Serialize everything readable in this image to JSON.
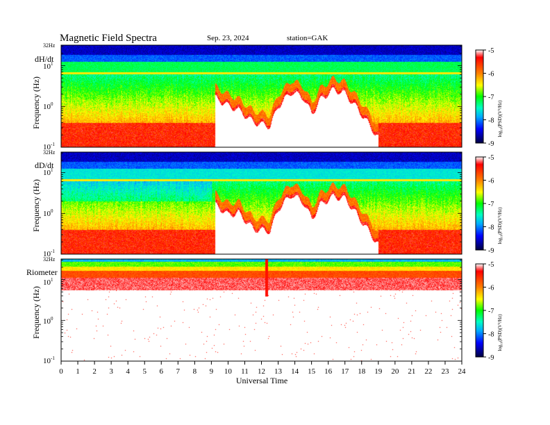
{
  "header": {
    "title": "Magnetic  Field  Spectra",
    "date": "Sep. 23, 2024",
    "station": "station=GAK"
  },
  "chart_data": {
    "type": "heatmap",
    "xlabel": "Universal  Time",
    "x_ticks": [
      "0",
      "1",
      "2",
      "3",
      "4",
      "5",
      "6",
      "7",
      "8",
      "9",
      "10",
      "11",
      "12",
      "13",
      "14",
      "15",
      "16",
      "17",
      "18",
      "19",
      "20",
      "21",
      "22",
      "23",
      "24"
    ],
    "xlim": [
      0,
      24
    ],
    "ylabel": "Frequency  (Hz)",
    "y_scale": "log",
    "ylim_hz": [
      0.1,
      32
    ],
    "y_ticks": [
      {
        "base": "10",
        "exp": "-1"
      },
      {
        "base": "10",
        "exp": "0"
      },
      {
        "base": "10",
        "exp": "1"
      },
      {
        "top_label": "32Hz"
      }
    ],
    "colorbar": {
      "label": "log₁₀(PSD)(V²/Hz)",
      "label_short": "log10(PSD)(V^2/Hz)",
      "range": [
        -9,
        -5
      ],
      "ticks": [
        "-5",
        "-6",
        "-7",
        "-8",
        "-9"
      ],
      "colormap": [
        "#000040",
        "#0000ff",
        "#00aaff",
        "#00ffc0",
        "#00ff00",
        "#ffff00",
        "#ff8000",
        "#ff0000",
        "#ffffff"
      ]
    },
    "panels": [
      {
        "name": "dH/dt",
        "quiet_upper_log10_f": [
          -0.55,
          -0.45,
          -0.4,
          -0.35,
          -0.4,
          -0.35,
          -0.5,
          -0.6,
          -0.5,
          -0.55
        ],
        "activity_hours": [
          9.2,
          19.0
        ],
        "activity_envelope": [
          [
            9.2,
            0.3
          ],
          [
            10.0,
            0.1
          ],
          [
            10.6,
            0.0
          ],
          [
            11.5,
            -0.3
          ],
          [
            12.5,
            -0.4
          ],
          [
            13.0,
            0.1
          ],
          [
            13.8,
            0.45
          ],
          [
            14.5,
            0.3
          ],
          [
            15.0,
            -0.1
          ],
          [
            15.5,
            0.25
          ],
          [
            16.3,
            0.5
          ],
          [
            17.0,
            0.4
          ],
          [
            17.8,
            0.0
          ],
          [
            18.5,
            -0.4
          ],
          [
            19.0,
            -0.7
          ]
        ]
      },
      {
        "name": "dD/dt",
        "quiet_upper_log10_f": [
          -0.5,
          -0.45,
          -0.4,
          -0.35,
          -0.45,
          -0.4,
          -0.55,
          -0.6,
          -0.55,
          -0.5
        ],
        "activity_hours": [
          9.2,
          19.0
        ],
        "activity_envelope": [
          [
            9.2,
            0.3
          ],
          [
            10.0,
            0.05
          ],
          [
            10.6,
            0.1
          ],
          [
            11.5,
            -0.3
          ],
          [
            12.5,
            -0.35
          ],
          [
            13.0,
            0.2
          ],
          [
            13.8,
            0.55
          ],
          [
            14.5,
            0.35
          ],
          [
            15.0,
            -0.05
          ],
          [
            15.5,
            0.3
          ],
          [
            16.3,
            0.5
          ],
          [
            17.0,
            0.45
          ],
          [
            17.8,
            0.0
          ],
          [
            18.5,
            -0.4
          ],
          [
            19.0,
            -0.7
          ]
        ]
      },
      {
        "name": "Riometer",
        "band_log10_f": [
          0.75,
          1.5
        ],
        "activity_hours": [],
        "spike_hour": 12.3
      }
    ]
  }
}
